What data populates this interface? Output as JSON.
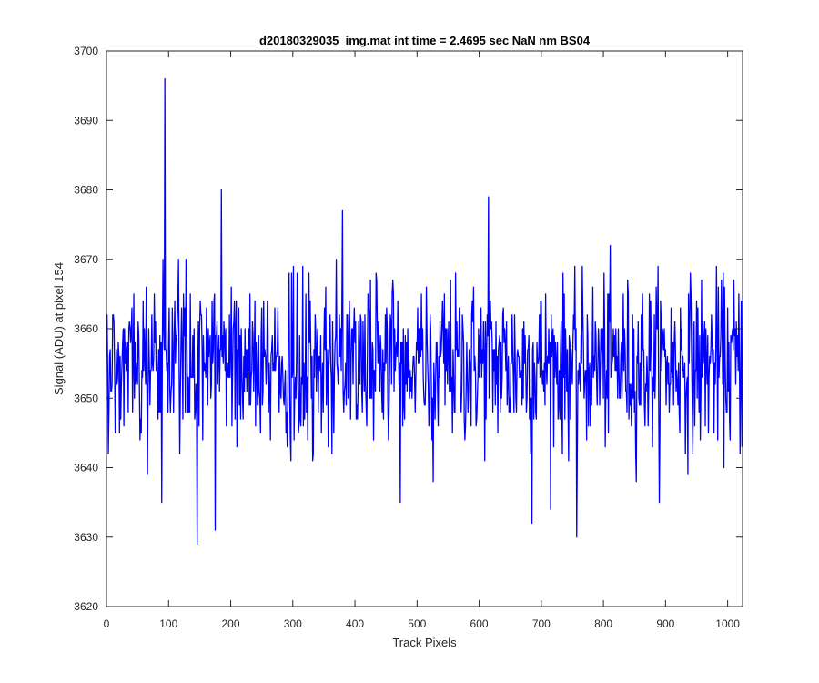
{
  "chart_data": {
    "type": "line",
    "title": "d20180329035_img.mat int time = 2.4695 sec  NaN nm BS04",
    "xlabel": "Track Pixels",
    "ylabel": "Signal (ADU) at pixel 154",
    "xlim": [
      0,
      1024
    ],
    "ylim": [
      3620,
      3700
    ],
    "xticks": [
      0,
      100,
      200,
      300,
      400,
      500,
      600,
      700,
      800,
      900,
      1000
    ],
    "yticks": [
      3620,
      3630,
      3640,
      3650,
      3660,
      3670,
      3680,
      3690,
      3700
    ],
    "grid": false,
    "legend": "none",
    "series": [
      {
        "color": "#0000ff",
        "n_points": 1024,
        "mean": 3655,
        "std_approx": 6,
        "notable_points": [
          {
            "x": 94,
            "y": 3696
          },
          {
            "x": 146,
            "y": 3629
          },
          {
            "x": 89,
            "y": 3635
          },
          {
            "x": 175,
            "y": 3631
          },
          {
            "x": 185,
            "y": 3680
          },
          {
            "x": 380,
            "y": 3677
          },
          {
            "x": 615,
            "y": 3679
          },
          {
            "x": 685,
            "y": 3632
          },
          {
            "x": 757,
            "y": 3630
          },
          {
            "x": 3,
            "y": 3642
          },
          {
            "x": 1020,
            "y": 3642
          }
        ]
      }
    ]
  }
}
